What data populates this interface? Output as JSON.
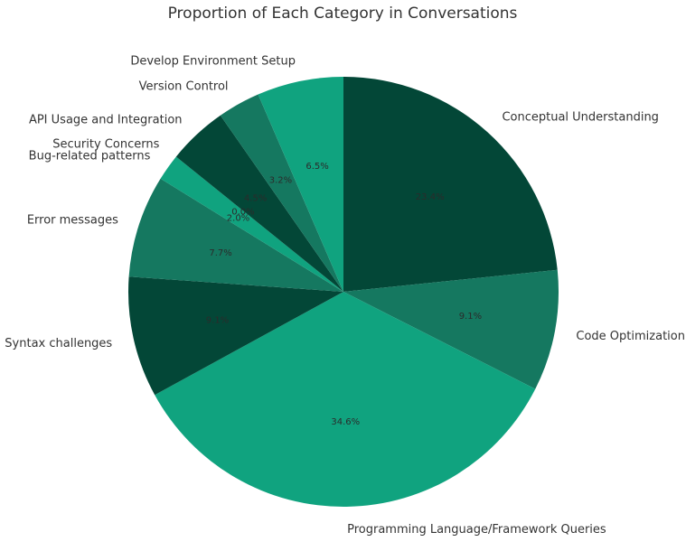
{
  "chart_data": {
    "type": "pie",
    "title": "Proportion of Each Category in Conversations",
    "slices": [
      {
        "label": "Conceptual Understanding",
        "value": 23.4,
        "pct_label": "23.4%",
        "color": "#034737"
      },
      {
        "label": "Code Optimization",
        "value": 9.1,
        "pct_label": "9.1%",
        "color": "#157860"
      },
      {
        "label": "Programming Language/Framework Queries",
        "value": 34.6,
        "pct_label": "34.6%",
        "color": "#10a37f"
      },
      {
        "label": "Syntax challenges",
        "value": 9.1,
        "pct_label": "9.1%",
        "color": "#034737"
      },
      {
        "label": "Error messages",
        "value": 7.7,
        "pct_label": "7.7%",
        "color": "#157860"
      },
      {
        "label": "Bug-related patterns",
        "value": 2.0,
        "pct_label": "2.0%",
        "color": "#10a37f"
      },
      {
        "label": "Security Concerns",
        "value": 0.0,
        "pct_label": "0.0%",
        "color": "#034737"
      },
      {
        "label": "API Usage and Integration",
        "value": 4.5,
        "pct_label": "4.5%",
        "color": "#034737"
      },
      {
        "label": "Version Control",
        "value": 3.2,
        "pct_label": "3.2%",
        "color": "#157860"
      },
      {
        "label": "Develop Environment Setup",
        "value": 6.5,
        "pct_label": "6.5%",
        "color": "#10a37f"
      }
    ],
    "start_angle_deg": 90,
    "direction": "clockwise",
    "legend": "none"
  }
}
